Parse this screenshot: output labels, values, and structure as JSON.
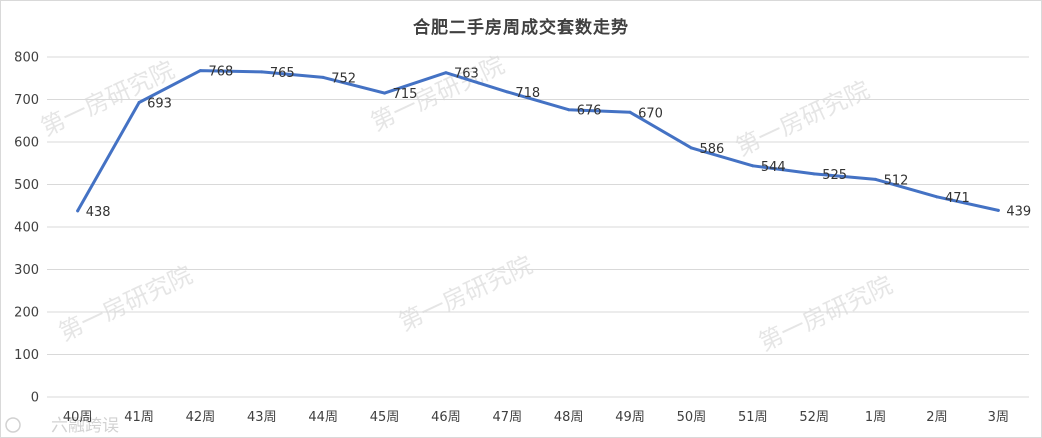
{
  "chart_data": {
    "type": "line",
    "title": "合肥二手房周成交套数走势",
    "categories": [
      "40周",
      "41周",
      "42周",
      "43周",
      "44周",
      "45周",
      "46周",
      "47周",
      "48周",
      "49周",
      "50周",
      "51周",
      "52周",
      "1周",
      "2周",
      "3周"
    ],
    "series": [
      {
        "values": [
          438,
          693,
          768,
          765,
          752,
          715,
          763,
          718,
          676,
          670,
          586,
          544,
          525,
          512,
          471,
          439
        ]
      }
    ],
    "ylim": [
      0,
      800
    ],
    "yticks": [
      0,
      100,
      200,
      300,
      400,
      500,
      600,
      700,
      800
    ],
    "grid": true,
    "line_color": "#4472c4",
    "data_labels": true
  },
  "watermark_text": "第一房研究院",
  "corner_logo_text": "六融跨误"
}
